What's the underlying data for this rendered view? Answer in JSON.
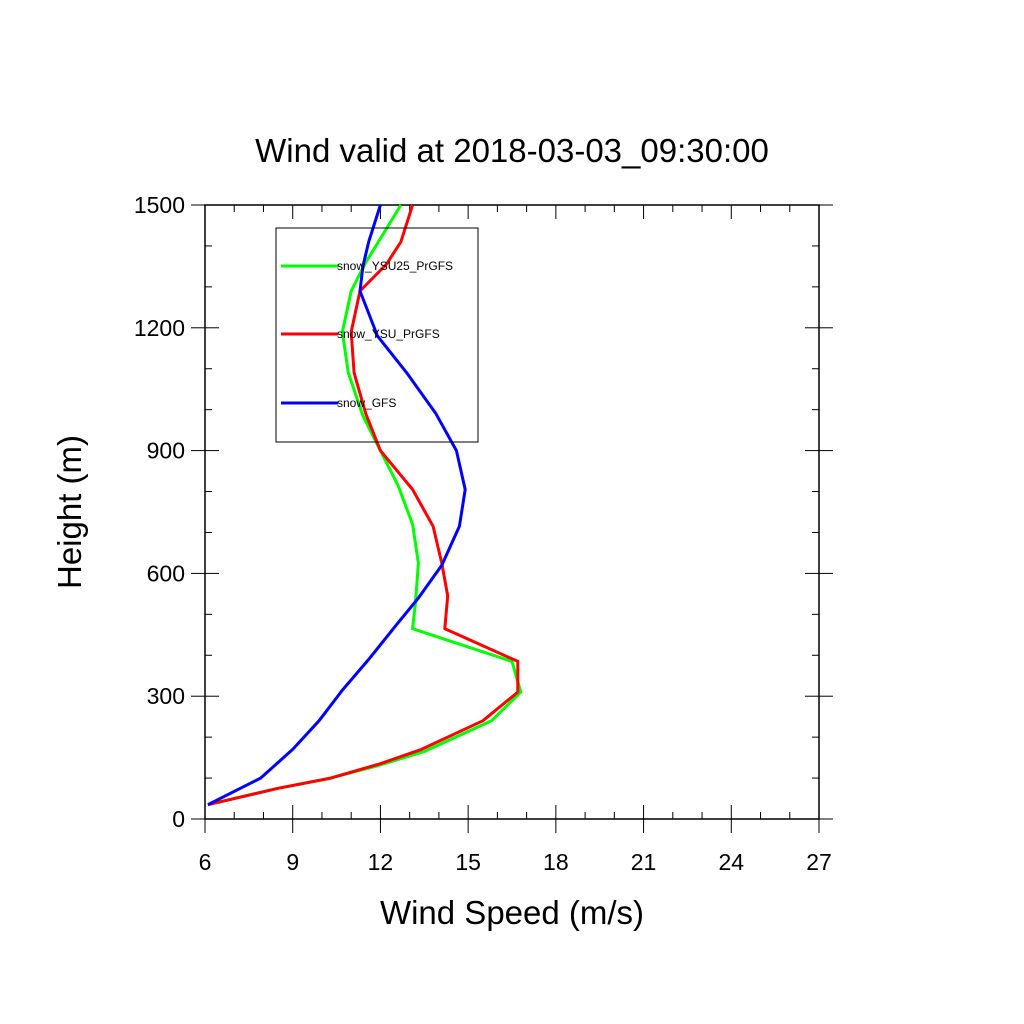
{
  "chart_data": {
    "type": "line",
    "title": "Wind valid at 2018-03-03_09:30:00",
    "xlabel": "Wind Speed (m/s)",
    "ylabel": "Height (m)",
    "xlim": [
      6,
      27
    ],
    "ylim": [
      0,
      1500
    ],
    "xticks": [
      6,
      9,
      12,
      15,
      18,
      21,
      24,
      27
    ],
    "yticks": [
      0,
      300,
      600,
      900,
      1200,
      1500
    ],
    "grid": false,
    "legend_position": "top-left (inside plot)",
    "series": [
      {
        "name": "snow_YSU25_PrGFS",
        "color": "#00ff00",
        "points": [
          [
            6.1,
            35
          ],
          [
            8.5,
            75
          ],
          [
            10.3,
            100
          ],
          [
            11.9,
            130
          ],
          [
            13.5,
            165
          ],
          [
            15.8,
            240
          ],
          [
            16.8,
            310
          ],
          [
            16.5,
            385
          ],
          [
            13.1,
            465
          ],
          [
            13.2,
            530
          ],
          [
            13.3,
            625
          ],
          [
            13.1,
            720
          ],
          [
            12.6,
            815
          ],
          [
            12.0,
            900
          ],
          [
            11.4,
            985
          ],
          [
            10.9,
            1090
          ],
          [
            10.7,
            1190
          ],
          [
            11.0,
            1290
          ],
          [
            11.5,
            1360
          ],
          [
            12.1,
            1430
          ],
          [
            12.7,
            1500
          ]
        ]
      },
      {
        "name": "snow_YSU_PrGFS",
        "color": "#ff0000",
        "points": [
          [
            6.1,
            35
          ],
          [
            8.5,
            75
          ],
          [
            10.3,
            100
          ],
          [
            12.0,
            135
          ],
          [
            13.4,
            170
          ],
          [
            15.5,
            240
          ],
          [
            16.7,
            310
          ],
          [
            16.7,
            385
          ],
          [
            14.2,
            465
          ],
          [
            14.3,
            545
          ],
          [
            14.1,
            625
          ],
          [
            13.8,
            715
          ],
          [
            13.1,
            805
          ],
          [
            12.0,
            900
          ],
          [
            11.5,
            990
          ],
          [
            11.1,
            1090
          ],
          [
            11.0,
            1190
          ],
          [
            11.3,
            1290
          ],
          [
            12.2,
            1355
          ],
          [
            12.7,
            1410
          ],
          [
            13.1,
            1500
          ]
        ]
      },
      {
        "name": "snow_GFS",
        "color": "#0000ff",
        "points": [
          [
            6.1,
            35
          ],
          [
            7.9,
            100
          ],
          [
            9.0,
            170
          ],
          [
            9.9,
            240
          ],
          [
            10.7,
            315
          ],
          [
            11.6,
            390
          ],
          [
            12.5,
            470
          ],
          [
            13.3,
            540
          ],
          [
            14.1,
            620
          ],
          [
            14.7,
            715
          ],
          [
            14.9,
            805
          ],
          [
            14.6,
            900
          ],
          [
            13.9,
            990
          ],
          [
            12.9,
            1090
          ],
          [
            11.9,
            1180
          ],
          [
            11.3,
            1290
          ],
          [
            11.4,
            1350
          ],
          [
            11.6,
            1410
          ],
          [
            12.0,
            1500
          ]
        ]
      }
    ]
  }
}
